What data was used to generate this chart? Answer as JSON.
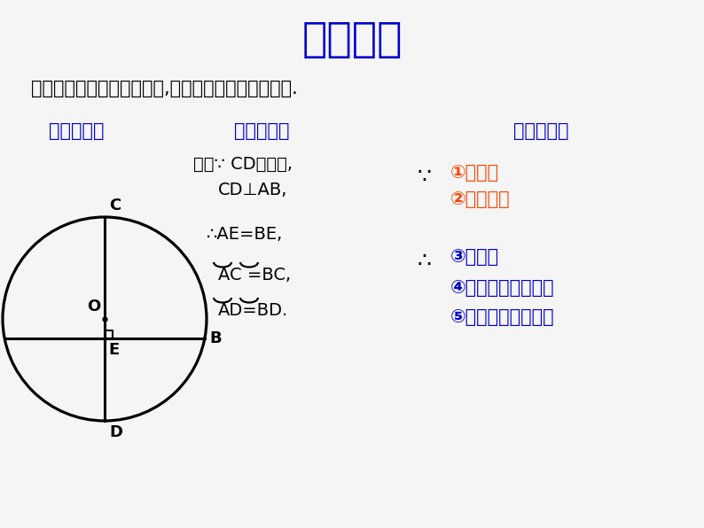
{
  "title": "垂径定理",
  "subtitle": "垂直于弦的直径平分这条弦,并且平分弦所对的两条弧.",
  "title_color": "#0000CD",
  "subtitle_color": "#000000",
  "bg_color": "#F5F5F5",
  "fig_label": "图形语言：",
  "sym_label": "符号语言：",
  "txt_label": "文字语言：",
  "label_color": "#0000CD",
  "orange_items": [
    "①过圆心",
    "②垂直于弦"
  ],
  "blue_items": [
    "③平分弦",
    "④平分弦所对的优弧",
    "⑤平分弦所对的劣弧"
  ],
  "orange_color": "#FF4500",
  "blue_color": "#0000CD",
  "circle_color": "#000000",
  "therefore_sym": "∴",
  "because_sym": "∵",
  "cond_line1": "如图∵ CD是直径,",
  "cond_line2": "CD⊥AB,",
  "conc_line1": "∴AE=BE,",
  "conc_line2": "AĈ =BĈ,",
  "conc_line3": "AD̂=BD̂."
}
